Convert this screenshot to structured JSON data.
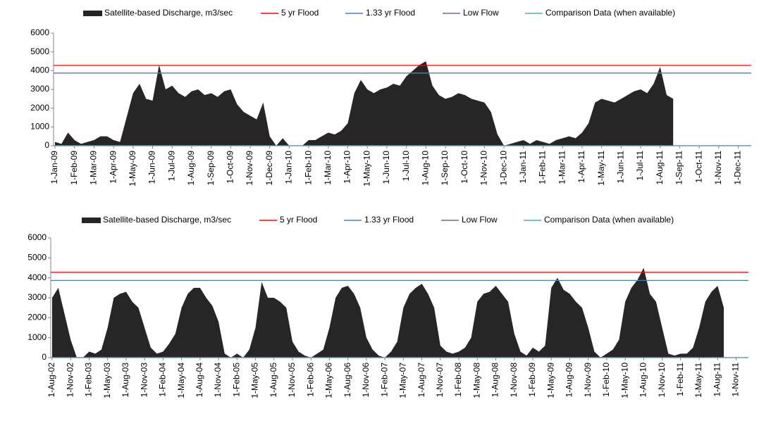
{
  "chart_data": [
    {
      "type": "area",
      "categories": [
        "1-Jan-09",
        null,
        null,
        "1-Feb-09",
        null,
        null,
        "1-Mar-09",
        null,
        null,
        "1-Apr-09",
        null,
        null,
        "1-May-09",
        null,
        null,
        "1-Jun-09",
        null,
        null,
        "1-Jul-09",
        null,
        null,
        "1-Aug-09",
        null,
        null,
        "1-Sep-09",
        null,
        null,
        "1-Oct-09",
        null,
        null,
        "1-Nov-09",
        null,
        null,
        "1-Dec-09",
        null,
        null,
        "1-Jan-10",
        null,
        null,
        "1-Feb-10",
        null,
        null,
        "1-Mar-10",
        null,
        null,
        "1-Apr-10",
        null,
        null,
        "1-May-10",
        null,
        null,
        "1-Jun-10",
        null,
        null,
        "1-Jul-10",
        null,
        null,
        "1-Aug-10",
        null,
        null,
        "1-Sep-10",
        null,
        null,
        "1-Oct-10",
        null,
        null,
        "1-Nov-10",
        null,
        null,
        "1-Dec-10",
        null,
        null,
        "1-Jan-11",
        null,
        null,
        "1-Feb-11",
        null,
        null,
        "1-Mar-11",
        null,
        null,
        "1-Apr-11",
        null,
        null,
        "1-May-11",
        null,
        null,
        "1-Jun-11",
        null,
        null,
        "1-Jul-11",
        null,
        null,
        "1-Aug-11",
        null,
        null,
        "1-Sep-11",
        null,
        null,
        "1-Oct-11",
        null,
        null,
        "1-Nov-11",
        null,
        null,
        "1-Dec-11",
        null,
        null
      ],
      "series": [
        {
          "name": "Satellite-based Discharge, m3/sec",
          "color": "#262626",
          "values": [
            200,
            100,
            700,
            300,
            100,
            200,
            300,
            500,
            500,
            300,
            200,
            1500,
            2800,
            3300,
            2500,
            2400,
            4300,
            3000,
            3200,
            2800,
            2600,
            2900,
            3000,
            2700,
            2800,
            2600,
            2900,
            3000,
            2200,
            1800,
            1600,
            1400,
            2300,
            500,
            0,
            400,
            0,
            0,
            0,
            300,
            300,
            500,
            700,
            600,
            800,
            1200,
            2800,
            3500,
            3000,
            2800,
            3000,
            3100,
            3300,
            3200,
            3700,
            4000,
            4300,
            4500,
            3200,
            2700,
            2500,
            2600,
            2800,
            2700,
            2500,
            2400,
            2300,
            1800,
            600,
            0,
            100,
            200,
            300,
            100,
            300,
            200,
            100,
            300,
            400,
            500,
            400,
            700,
            1200,
            2300,
            2500,
            2400,
            2300,
            2500,
            2700,
            2900,
            3000,
            2800,
            3300,
            4200,
            2700,
            2500,
            null,
            null,
            null,
            null,
            null,
            null,
            null,
            null,
            null,
            null,
            null,
            null
          ]
        }
      ],
      "reference_lines": [
        {
          "name": "5 yr Flood",
          "color": "#ff0000",
          "value": 4280
        },
        {
          "name": "1.33 yr Flood",
          "color": "#4a7ebb",
          "value": 3870
        },
        {
          "name": "Low Flow",
          "color": "#7f5fa0",
          "value": 0
        },
        {
          "name": "Comparison Data (when available)",
          "color": "#4bacc6",
          "value": 0
        }
      ],
      "ylim": [
        0,
        6000
      ],
      "yticks": [
        0,
        1000,
        2000,
        3000,
        4000,
        5000,
        6000
      ]
    },
    {
      "type": "area",
      "categories": [
        "1-Aug-02",
        null,
        null,
        "1-Nov-02",
        null,
        null,
        "1-Feb-03",
        null,
        null,
        "1-May-03",
        null,
        null,
        "1-Aug-03",
        null,
        null,
        "1-Nov-03",
        null,
        null,
        "1-Feb-04",
        null,
        null,
        "1-May-04",
        null,
        null,
        "1-Aug-04",
        null,
        null,
        "1-Nov-04",
        null,
        null,
        "1-Feb-05",
        null,
        null,
        "1-May-05",
        null,
        null,
        "1-Aug-05",
        null,
        null,
        "1-Nov-05",
        null,
        null,
        "1-Feb-06",
        null,
        null,
        "1-May-06",
        null,
        null,
        "1-Aug-06",
        null,
        null,
        "1-Nov-06",
        null,
        null,
        "1-Feb-07",
        null,
        null,
        "1-May-07",
        null,
        null,
        "1-Aug-07",
        null,
        null,
        "1-Nov-07",
        null,
        null,
        "1-Feb-08",
        null,
        null,
        "1-May-08",
        null,
        null,
        "1-Aug-08",
        null,
        null,
        "1-Nov-08",
        null,
        null,
        "1-Feb-09",
        null,
        null,
        "1-May-09",
        null,
        null,
        "1-Aug-09",
        null,
        null,
        "1-Nov-09",
        null,
        null,
        "1-Feb-10",
        null,
        null,
        "1-May-10",
        null,
        null,
        "1-Aug-10",
        null,
        null,
        "1-Nov-10",
        null,
        null,
        "1-Feb-11",
        null,
        null,
        "1-May-11",
        null,
        null,
        "1-Aug-11",
        null,
        null,
        "1-Nov-11",
        null,
        null
      ],
      "series": [
        {
          "name": "Satellite-based Discharge, m3/sec",
          "color": "#262626",
          "values": [
            3000,
            3500,
            2200,
            900,
            0,
            0,
            300,
            200,
            400,
            1500,
            3000,
            3200,
            3300,
            2800,
            2500,
            1500,
            500,
            200,
            300,
            700,
            1200,
            2500,
            3200,
            3500,
            3500,
            3000,
            2600,
            1800,
            200,
            0,
            200,
            0,
            400,
            1500,
            3800,
            3000,
            3000,
            2800,
            2500,
            800,
            300,
            100,
            0,
            200,
            400,
            1500,
            3000,
            3500,
            3600,
            3200,
            2500,
            1000,
            400,
            100,
            0,
            300,
            800,
            2500,
            3200,
            3500,
            3700,
            3200,
            2500,
            600,
            300,
            200,
            300,
            500,
            1000,
            2800,
            3200,
            3300,
            3600,
            3200,
            2800,
            1200,
            300,
            100,
            500,
            300,
            600,
            3500,
            4000,
            3400,
            3200,
            2800,
            2500,
            1500,
            300,
            0,
            200,
            400,
            900,
            2800,
            3500,
            3900,
            4500,
            3200,
            2800,
            1500,
            200,
            100,
            200,
            200,
            500,
            1500,
            2800,
            3300,
            3600,
            2500,
            null,
            null,
            null,
            null
          ]
        }
      ],
      "reference_lines": [
        {
          "name": "5 yr Flood",
          "color": "#ff0000",
          "value": 4280
        },
        {
          "name": "1.33 yr Flood",
          "color": "#4a7ebb",
          "value": 3870
        },
        {
          "name": "Low Flow",
          "color": "#7f5fa0",
          "value": 0
        },
        {
          "name": "Comparison Data (when available)",
          "color": "#4bacc6",
          "value": 0
        }
      ],
      "ylim": [
        0,
        6000
      ],
      "yticks": [
        0,
        1000,
        2000,
        3000,
        4000,
        5000,
        6000
      ]
    }
  ]
}
